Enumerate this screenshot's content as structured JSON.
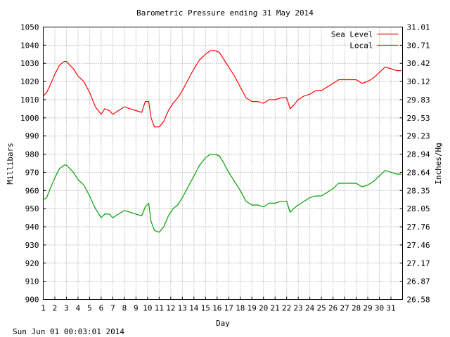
{
  "chart_data": {
    "type": "line",
    "title": "Barometric Pressure ending 31 May 2014",
    "xlabel": "Day",
    "ylabel": "Millibars",
    "y2label": "Inches/Hg",
    "footer": "Sun Jun 01 00:03:01 2014",
    "xlim": [
      1,
      32
    ],
    "ylim": [
      900,
      1050
    ],
    "x_ticks": [
      "1",
      "2",
      "3",
      "4",
      "5",
      "6",
      "7",
      "8",
      "9",
      "10",
      "11",
      "12",
      "13",
      "14",
      "15",
      "16",
      "17",
      "18",
      "19",
      "20",
      "21",
      "22",
      "23",
      "24",
      "25",
      "26",
      "27",
      "28",
      "29",
      "30",
      "31"
    ],
    "y_ticks": [
      900,
      910,
      920,
      930,
      940,
      950,
      960,
      970,
      980,
      990,
      1000,
      1010,
      1020,
      1030,
      1040,
      1050
    ],
    "y2_ticks": [
      "26.58",
      "26.87",
      "27.17",
      "27.46",
      "27.76",
      "28.05",
      "28.35",
      "28.64",
      "28.94",
      "29.23",
      "29.53",
      "29.83",
      "30.12",
      "30.42",
      "30.71",
      "31.01"
    ],
    "grid": true,
    "legend_position": "top-right",
    "series": [
      {
        "name": "Sea Level",
        "color": "#ff0000",
        "x": [
          1,
          1.3,
          1.6,
          2,
          2.4,
          2.8,
          3.0,
          3.3,
          3.6,
          4,
          4.5,
          5,
          5.5,
          6,
          6.3,
          6.7,
          7,
          7.5,
          8,
          8.5,
          9,
          9.5,
          9.8,
          10.1,
          10.3,
          10.6,
          11,
          11.4,
          11.8,
          12.2,
          12.6,
          13,
          13.5,
          14,
          14.5,
          15,
          15.4,
          15.8,
          16.2,
          16.5,
          17,
          17.5,
          18,
          18.5,
          19,
          19.5,
          20,
          20.5,
          21,
          21.5,
          22,
          22.3,
          22.6,
          23,
          23.5,
          24,
          24.5,
          25,
          25.5,
          26,
          26.5,
          27,
          27.5,
          28,
          28.5,
          29,
          29.5,
          30,
          30.5,
          31,
          31.5,
          31.9
        ],
        "values": [
          1012,
          1014,
          1018,
          1024,
          1029,
          1031,
          1031,
          1029,
          1027,
          1023,
          1020,
          1014,
          1006,
          1002,
          1005,
          1004,
          1002,
          1004,
          1006,
          1005,
          1004,
          1003,
          1009,
          1009,
          1000,
          995,
          995,
          998,
          1004,
          1008,
          1011,
          1015,
          1021,
          1027,
          1032,
          1035,
          1037,
          1037,
          1036,
          1033,
          1028,
          1023,
          1017,
          1011,
          1009,
          1009,
          1008,
          1010,
          1010,
          1011,
          1011,
          1005,
          1007,
          1010,
          1012,
          1013,
          1015,
          1015,
          1017,
          1019,
          1021,
          1021,
          1021,
          1021,
          1019,
          1020,
          1022,
          1025,
          1028,
          1027,
          1026,
          1026
        ]
      },
      {
        "name": "Local",
        "color": "#00a000",
        "x": [
          1,
          1.3,
          1.6,
          2,
          2.4,
          2.8,
          3.0,
          3.3,
          3.6,
          4,
          4.5,
          5,
          5.5,
          6,
          6.3,
          6.7,
          7,
          7.5,
          8,
          8.5,
          9,
          9.5,
          9.8,
          10.1,
          10.3,
          10.6,
          11,
          11.4,
          11.8,
          12.2,
          12.6,
          13,
          13.5,
          14,
          14.5,
          15,
          15.4,
          15.8,
          16.2,
          16.5,
          17,
          17.5,
          18,
          18.5,
          19,
          19.5,
          20,
          20.5,
          21,
          21.5,
          22,
          22.3,
          22.6,
          23,
          23.5,
          24,
          24.5,
          25,
          25.5,
          26,
          26.5,
          27,
          27.5,
          28,
          28.5,
          29,
          29.5,
          30,
          30.5,
          31,
          31.5,
          31.9
        ],
        "values": [
          955,
          956,
          961,
          967,
          972,
          974,
          974,
          972,
          970,
          966,
          963,
          957,
          950,
          945,
          947,
          947,
          945,
          947,
          949,
          948,
          947,
          946,
          951,
          953,
          943,
          938,
          937,
          940,
          946,
          950,
          952,
          956,
          962,
          968,
          974,
          978,
          980,
          980,
          979,
          976,
          970,
          965,
          960,
          954,
          952,
          952,
          951,
          953,
          953,
          954,
          954,
          948,
          950,
          952,
          954,
          956,
          957,
          957,
          959,
          961,
          964,
          964,
          964,
          964,
          962,
          963,
          965,
          968,
          971,
          970,
          969,
          969
        ]
      }
    ]
  }
}
